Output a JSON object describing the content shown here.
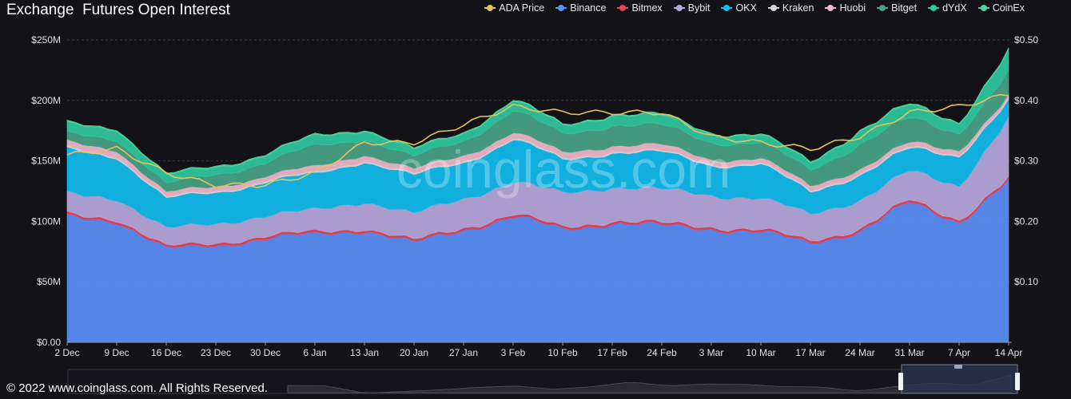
{
  "title": "Exchange  Futures Open Interest",
  "watermark": "coinglass.com",
  "footer": "© 2022 www.coinglass.com. All Rights Reserved.",
  "chart_data": {
    "type": "area",
    "title": "Exchange  Futures Open Interest",
    "stacked": true,
    "categories": [
      "2 Dec",
      "9 Dec",
      "16 Dec",
      "23 Dec",
      "30 Dec",
      "6 Jan",
      "13 Jan",
      "20 Jan",
      "27 Jan",
      "3 Feb",
      "10 Feb",
      "17 Feb",
      "24 Feb",
      "3 Mar",
      "10 Mar",
      "17 Mar",
      "24 Mar",
      "31 Mar",
      "7 Apr",
      "14 Apr"
    ],
    "y_left": {
      "ticks": [
        "$0.00",
        "$50M",
        "$100M",
        "$150M",
        "$200M",
        "$250M"
      ],
      "range": [
        0,
        250
      ],
      "unit": "M USD"
    },
    "y_right": {
      "ticks": [
        "$0.10",
        "$0.20",
        "$0.30",
        "$0.40",
        "$0.50"
      ],
      "range": [
        0,
        0.5
      ]
    },
    "grid": true,
    "legend_position": "top-right",
    "legend": [
      {
        "name": "ADA Price",
        "color": "#e5c35a"
      },
      {
        "name": "Binance",
        "color": "#5b8ff9"
      },
      {
        "name": "Bitmex",
        "color": "#e8455a"
      },
      {
        "name": "Bybit",
        "color": "#b7a8dc"
      },
      {
        "name": "OKX",
        "color": "#11bdf0"
      },
      {
        "name": "Kraken",
        "color": "#d8d8d8"
      },
      {
        "name": "Huobi",
        "color": "#f2b8cc"
      },
      {
        "name": "Bitget",
        "color": "#49a487"
      },
      {
        "name": "dYdX",
        "color": "#2fc9a0"
      },
      {
        "name": "CoinEx",
        "color": "#52d39b"
      }
    ],
    "series": [
      {
        "name": "Binance",
        "color": "#5b8ff9",
        "values": [
          103,
          101,
          77,
          80,
          86,
          89,
          93,
          82,
          93,
          104,
          93,
          99,
          96,
          94,
          91,
          82,
          92,
          115,
          100,
          133
        ]
      },
      {
        "name": "Bitmex",
        "color": "#e8455a",
        "values": [
          2,
          2,
          2,
          2,
          2,
          2,
          2,
          2,
          2,
          2,
          2,
          2,
          2,
          2,
          2,
          2,
          2,
          2,
          2,
          2
        ]
      },
      {
        "name": "Bybit",
        "color": "#b7a8dc",
        "values": [
          17,
          17,
          15,
          16,
          17,
          18,
          22,
          22,
          24,
          27,
          28,
          28,
          28,
          26,
          26,
          22,
          24,
          24,
          28,
          50
        ]
      },
      {
        "name": "OKX",
        "color": "#11bdf0",
        "values": [
          36,
          35,
          24,
          26,
          28,
          29,
          34,
          31,
          30,
          35,
          27,
          29,
          30,
          25,
          28,
          18,
          21,
          18,
          25,
          14
        ]
      },
      {
        "name": "Kraken",
        "color": "#d8d8d8",
        "values": [
          1,
          1,
          1,
          1,
          1,
          1,
          1,
          1,
          1,
          1,
          1,
          1,
          1,
          1,
          1,
          1,
          1,
          1,
          1,
          1
        ]
      },
      {
        "name": "Huobi",
        "color": "#f2b8cc",
        "values": [
          5,
          5,
          4,
          4,
          4,
          5,
          5,
          4,
          5,
          5,
          5,
          5,
          5,
          4,
          4,
          4,
          4,
          4,
          4,
          3
        ]
      },
      {
        "name": "Bitget",
        "color": "#49a487",
        "values": [
          7,
          9,
          7,
          10,
          11,
          17,
          13,
          10,
          12,
          18,
          15,
          17,
          16,
          14,
          13,
          13,
          21,
          20,
          14,
          20
        ]
      },
      {
        "name": "dYdX",
        "color": "#2fc9a0",
        "values": [
          8,
          8,
          7,
          6,
          6,
          8,
          7,
          6,
          6,
          8,
          7,
          8,
          8,
          7,
          6,
          6,
          10,
          11,
          8,
          17
        ]
      },
      {
        "name": "CoinEx",
        "color": "#52d39b",
        "values": [
          1,
          1,
          1,
          1,
          1,
          1,
          1,
          1,
          1,
          1,
          1,
          1,
          1,
          1,
          1,
          1,
          1,
          1,
          1,
          1
        ]
      }
    ],
    "price_series": {
      "name": "ADA Price",
      "color": "#e5c35a",
      "axis": "right",
      "values": [
        0.31,
        0.32,
        0.28,
        0.26,
        0.26,
        0.28,
        0.33,
        0.33,
        0.36,
        0.39,
        0.38,
        0.38,
        0.38,
        0.34,
        0.33,
        0.32,
        0.34,
        0.38,
        0.39,
        0.41
      ]
    }
  }
}
